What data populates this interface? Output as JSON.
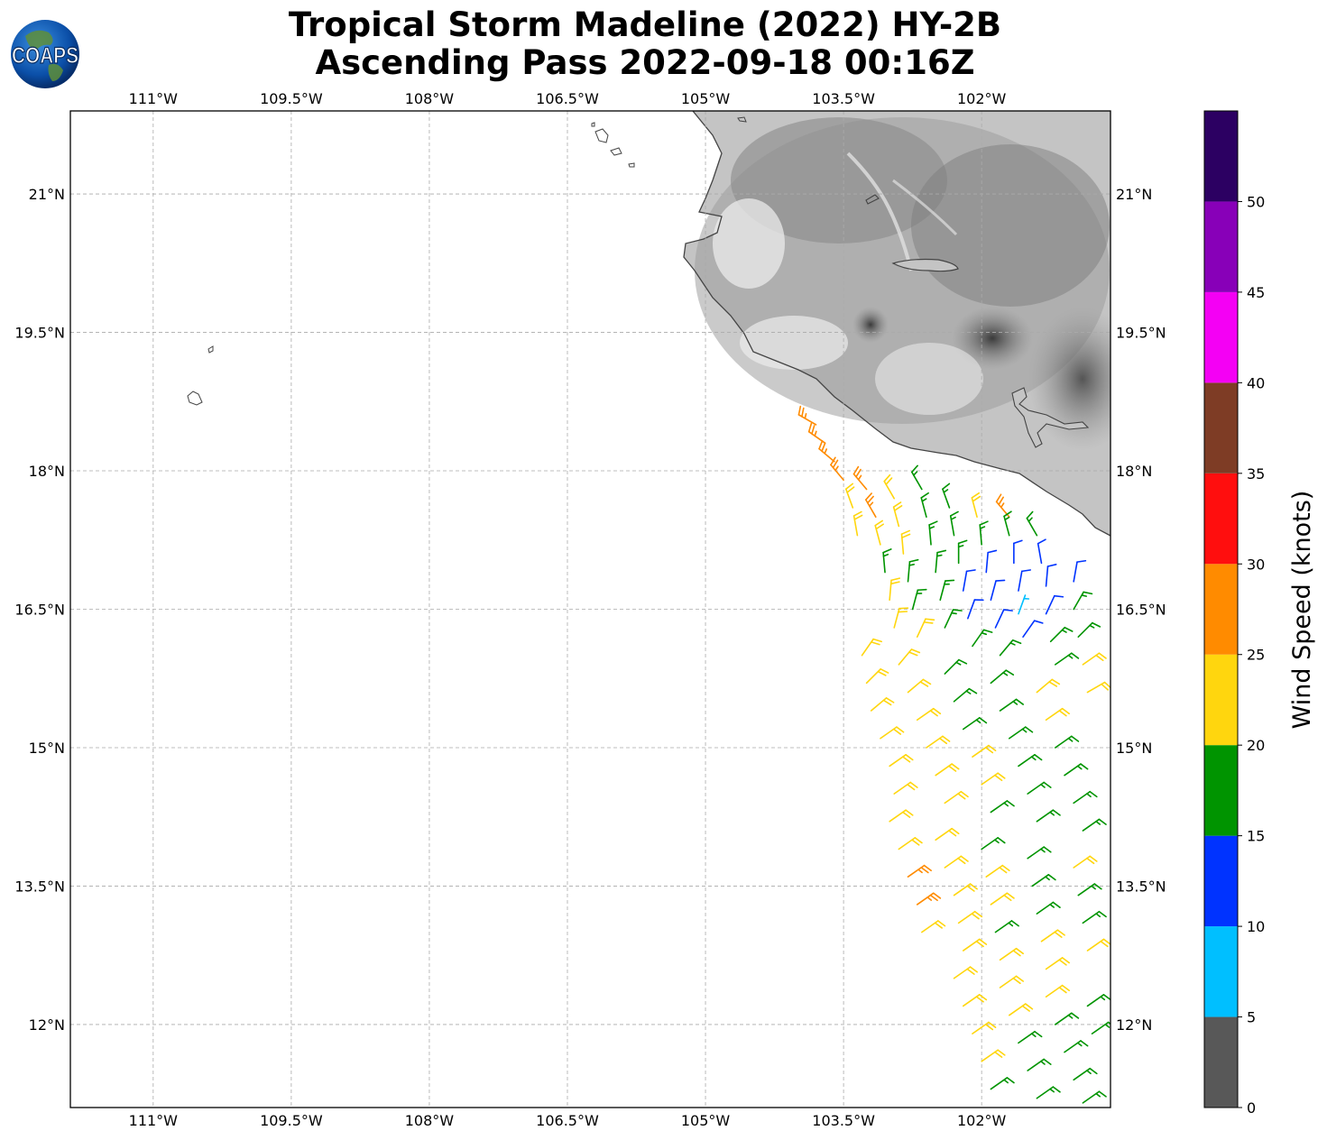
{
  "title_line1": "Tropical Storm Madeline (2022) HY-2B",
  "title_line2": "Ascending Pass 2022-09-18 00:16Z",
  "logo_text": "COAPS",
  "map": {
    "lon_range": [
      -111.9,
      -100.6
    ],
    "lat_range": [
      11.1,
      21.9
    ],
    "lon_ticks": [
      {
        "value": -111.0,
        "label": "111°W"
      },
      {
        "value": -109.5,
        "label": "109.5°W"
      },
      {
        "value": -108.0,
        "label": "108°W"
      },
      {
        "value": -106.5,
        "label": "106.5°W"
      },
      {
        "value": -105.0,
        "label": "105°W"
      },
      {
        "value": -103.5,
        "label": "103.5°W"
      },
      {
        "value": -102.0,
        "label": "102°W"
      }
    ],
    "lat_ticks": [
      {
        "value": 21.0,
        "label": "21°N"
      },
      {
        "value": 19.5,
        "label": "19.5°N"
      },
      {
        "value": 18.0,
        "label": "18°N"
      },
      {
        "value": 16.5,
        "label": "16.5°N"
      },
      {
        "value": 15.0,
        "label": "15°N"
      },
      {
        "value": 13.5,
        "label": "13.5°N"
      },
      {
        "value": 12.0,
        "label": "12°N"
      }
    ],
    "gridlines": true
  },
  "colorbar": {
    "label": "Wind Speed (knots)",
    "ticks": [
      0,
      5,
      10,
      15,
      20,
      25,
      30,
      35,
      40,
      45,
      50
    ],
    "bins": [
      {
        "from": 0,
        "to": 5,
        "color": "#585858"
      },
      {
        "from": 5,
        "to": 10,
        "color": "#00bfff"
      },
      {
        "from": 10,
        "to": 15,
        "color": "#0033ff"
      },
      {
        "from": 15,
        "to": 20,
        "color": "#009400"
      },
      {
        "from": 20,
        "to": 25,
        "color": "#ffd60e"
      },
      {
        "from": 25,
        "to": 30,
        "color": "#ff8b00"
      },
      {
        "from": 30,
        "to": 35,
        "color": "#ff0e0e"
      },
      {
        "from": 35,
        "to": 40,
        "color": "#7e3c25"
      },
      {
        "from": 40,
        "to": 45,
        "color": "#f400f4"
      },
      {
        "from": 45,
        "to": 50,
        "color": "#8800b8"
      },
      {
        "from": 50,
        "to": 55,
        "color": "#2c0062"
      }
    ]
  },
  "chart_data": {
    "type": "map",
    "wind_barbs": {
      "units": "knots",
      "note_fields": [
        "lat",
        "lon",
        "speed_kt",
        "direction_from_deg"
      ],
      "points": [
        [
          18.5,
          -103.8,
          27,
          300
        ],
        [
          18.3,
          -103.7,
          27,
          305
        ],
        [
          18.1,
          -103.6,
          27,
          310
        ],
        [
          17.9,
          -103.5,
          26,
          320
        ],
        [
          17.6,
          -103.4,
          23,
          340
        ],
        [
          17.3,
          -103.35,
          22,
          350
        ],
        [
          17.8,
          -103.25,
          27,
          320
        ],
        [
          17.5,
          -103.15,
          27,
          330
        ],
        [
          17.2,
          -103.1,
          22,
          345
        ],
        [
          16.9,
          -103.05,
          18,
          355
        ],
        [
          16.6,
          -103.0,
          22,
          5
        ],
        [
          16.3,
          -102.95,
          22,
          15
        ],
        [
          17.7,
          -102.95,
          22,
          330
        ],
        [
          17.4,
          -102.9,
          22,
          345
        ],
        [
          17.1,
          -102.85,
          22,
          355
        ],
        [
          16.8,
          -102.8,
          18,
          5
        ],
        [
          16.5,
          -102.75,
          18,
          15
        ],
        [
          16.2,
          -102.7,
          22,
          25
        ],
        [
          17.8,
          -102.65,
          17,
          330
        ],
        [
          17.5,
          -102.6,
          17,
          345
        ],
        [
          17.2,
          -102.55,
          17,
          355
        ],
        [
          16.9,
          -102.5,
          17,
          5
        ],
        [
          16.6,
          -102.45,
          17,
          15
        ],
        [
          16.3,
          -102.4,
          18,
          25
        ],
        [
          17.6,
          -102.35,
          17,
          340
        ],
        [
          17.3,
          -102.3,
          17,
          350
        ],
        [
          17.0,
          -102.25,
          17,
          0
        ],
        [
          16.7,
          -102.2,
          13,
          10
        ],
        [
          16.4,
          -102.15,
          13,
          20
        ],
        [
          16.1,
          -102.1,
          17,
          35
        ],
        [
          17.5,
          -102.05,
          22,
          345
        ],
        [
          17.2,
          -102.0,
          17,
          355
        ],
        [
          16.9,
          -101.95,
          13,
          5
        ],
        [
          16.6,
          -101.9,
          13,
          15
        ],
        [
          16.3,
          -101.85,
          13,
          25
        ],
        [
          16.0,
          -101.8,
          17,
          40
        ],
        [
          17.5,
          -101.7,
          27,
          320
        ],
        [
          17.3,
          -101.7,
          17,
          345
        ],
        [
          17.0,
          -101.65,
          13,
          0
        ],
        [
          16.7,
          -101.6,
          13,
          10
        ],
        [
          16.45,
          -101.6,
          8,
          20
        ],
        [
          16.2,
          -101.55,
          13,
          35
        ],
        [
          17.3,
          -101.4,
          17,
          330
        ],
        [
          17.0,
          -101.35,
          13,
          350
        ],
        [
          16.75,
          -101.3,
          13,
          5
        ],
        [
          16.45,
          -101.3,
          13,
          25
        ],
        [
          16.15,
          -101.25,
          17,
          45
        ],
        [
          15.9,
          -101.2,
          17,
          55
        ],
        [
          16.8,
          -101.0,
          13,
          10
        ],
        [
          16.5,
          -101.0,
          17,
          30
        ],
        [
          16.2,
          -100.95,
          17,
          45
        ],
        [
          15.9,
          -100.9,
          22,
          55
        ],
        [
          15.6,
          -100.85,
          22,
          60
        ],
        [
          16.0,
          -103.3,
          22,
          35
        ],
        [
          15.7,
          -103.25,
          22,
          45
        ],
        [
          15.4,
          -103.2,
          22,
          50
        ],
        [
          15.1,
          -103.1,
          22,
          55
        ],
        [
          14.8,
          -103.0,
          22,
          55
        ],
        [
          14.5,
          -102.95,
          22,
          55
        ],
        [
          15.9,
          -102.9,
          22,
          40
        ],
        [
          15.6,
          -102.8,
          22,
          50
        ],
        [
          15.3,
          -102.7,
          22,
          55
        ],
        [
          15.0,
          -102.6,
          22,
          55
        ],
        [
          14.7,
          -102.5,
          22,
          55
        ],
        [
          14.4,
          -102.4,
          22,
          55
        ],
        [
          15.8,
          -102.4,
          17,
          45
        ],
        [
          15.5,
          -102.3,
          17,
          50
        ],
        [
          15.2,
          -102.2,
          17,
          55
        ],
        [
          14.9,
          -102.1,
          22,
          55
        ],
        [
          14.6,
          -102.0,
          22,
          55
        ],
        [
          14.3,
          -101.9,
          17,
          55
        ],
        [
          15.7,
          -101.9,
          17,
          50
        ],
        [
          15.4,
          -101.8,
          17,
          55
        ],
        [
          15.1,
          -101.7,
          17,
          55
        ],
        [
          14.8,
          -101.6,
          17,
          55
        ],
        [
          14.5,
          -101.5,
          17,
          55
        ],
        [
          14.2,
          -101.4,
          17,
          55
        ],
        [
          15.6,
          -101.4,
          22,
          50
        ],
        [
          15.3,
          -101.3,
          22,
          55
        ],
        [
          15.0,
          -101.2,
          17,
          55
        ],
        [
          14.7,
          -101.1,
          17,
          55
        ],
        [
          14.4,
          -101.0,
          17,
          55
        ],
        [
          14.1,
          -100.9,
          17,
          55
        ],
        [
          14.2,
          -103.0,
          22,
          55
        ],
        [
          13.9,
          -102.9,
          22,
          55
        ],
        [
          13.6,
          -102.8,
          27,
          55
        ],
        [
          13.3,
          -102.7,
          27,
          55
        ],
        [
          13.0,
          -102.65,
          22,
          55
        ],
        [
          14.0,
          -102.5,
          22,
          55
        ],
        [
          13.7,
          -102.4,
          22,
          55
        ],
        [
          13.4,
          -102.3,
          22,
          55
        ],
        [
          13.1,
          -102.25,
          22,
          55
        ],
        [
          12.8,
          -102.2,
          22,
          55
        ],
        [
          13.9,
          -102.0,
          17,
          55
        ],
        [
          13.6,
          -101.95,
          22,
          55
        ],
        [
          13.3,
          -101.9,
          22,
          55
        ],
        [
          13.0,
          -101.85,
          17,
          55
        ],
        [
          12.7,
          -101.8,
          22,
          55
        ],
        [
          13.8,
          -101.5,
          17,
          55
        ],
        [
          13.5,
          -101.45,
          17,
          55
        ],
        [
          13.2,
          -101.4,
          17,
          55
        ],
        [
          12.9,
          -101.35,
          22,
          55
        ],
        [
          12.6,
          -101.3,
          22,
          55
        ],
        [
          13.7,
          -101.0,
          22,
          55
        ],
        [
          13.4,
          -100.95,
          17,
          55
        ],
        [
          13.1,
          -100.9,
          17,
          55
        ],
        [
          12.8,
          -100.85,
          22,
          55
        ],
        [
          12.5,
          -102.3,
          22,
          55
        ],
        [
          12.2,
          -102.2,
          22,
          55
        ],
        [
          11.9,
          -102.1,
          22,
          55
        ],
        [
          11.6,
          -102.0,
          22,
          55
        ],
        [
          11.3,
          -101.9,
          17,
          55
        ],
        [
          12.4,
          -101.8,
          22,
          55
        ],
        [
          12.1,
          -101.7,
          22,
          55
        ],
        [
          11.8,
          -101.6,
          17,
          55
        ],
        [
          11.5,
          -101.5,
          17,
          55
        ],
        [
          11.2,
          -101.4,
          17,
          55
        ],
        [
          12.3,
          -101.3,
          22,
          55
        ],
        [
          12.0,
          -101.2,
          17,
          55
        ],
        [
          11.7,
          -101.1,
          17,
          55
        ],
        [
          11.4,
          -101.0,
          17,
          55
        ],
        [
          11.15,
          -100.9,
          17,
          55
        ],
        [
          12.2,
          -100.85,
          17,
          55
        ],
        [
          11.9,
          -100.8,
          17,
          55
        ]
      ]
    }
  }
}
